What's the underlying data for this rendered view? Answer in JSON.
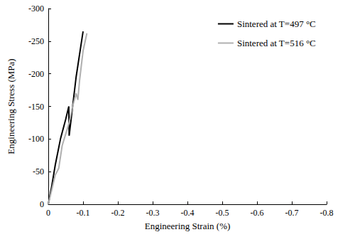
{
  "chart_data": {
    "type": "line",
    "x_label": "Engineering Strain (%)",
    "y_label": "Engineering Stress (MPa)",
    "xlim": [
      0,
      -0.8
    ],
    "xticks": [
      0,
      -0.1,
      -0.2,
      -0.3,
      -0.4,
      -0.5,
      -0.6,
      -0.7,
      -0.8
    ],
    "ylim": [
      0,
      -300
    ],
    "yticks": [
      0,
      -50,
      -100,
      -150,
      -200,
      -250,
      -300
    ],
    "grid": false,
    "legend": "upper right",
    "series": [
      {
        "name": "Sintered at T=497 °C",
        "color": "#000000",
        "x": [
          0,
          -0.01,
          -0.02,
          -0.035,
          -0.05,
          -0.059,
          -0.06,
          -0.07,
          -0.08,
          -0.09,
          -0.1
        ],
        "values": [
          0,
          -28,
          -60,
          -100,
          -130,
          -150,
          -105,
          -150,
          -195,
          -230,
          -265
        ]
      },
      {
        "name": "Sintered at T=516 °C",
        "color": "#b0b0b0",
        "x": [
          0,
          -0.01,
          -0.02,
          -0.025,
          -0.03,
          -0.04,
          -0.06,
          -0.07,
          -0.08,
          -0.085,
          -0.09,
          -0.1,
          -0.111
        ],
        "values": [
          0,
          -22,
          -45,
          -50,
          -55,
          -90,
          -125,
          -150,
          -170,
          -160,
          -190,
          -235,
          -262
        ]
      }
    ]
  }
}
